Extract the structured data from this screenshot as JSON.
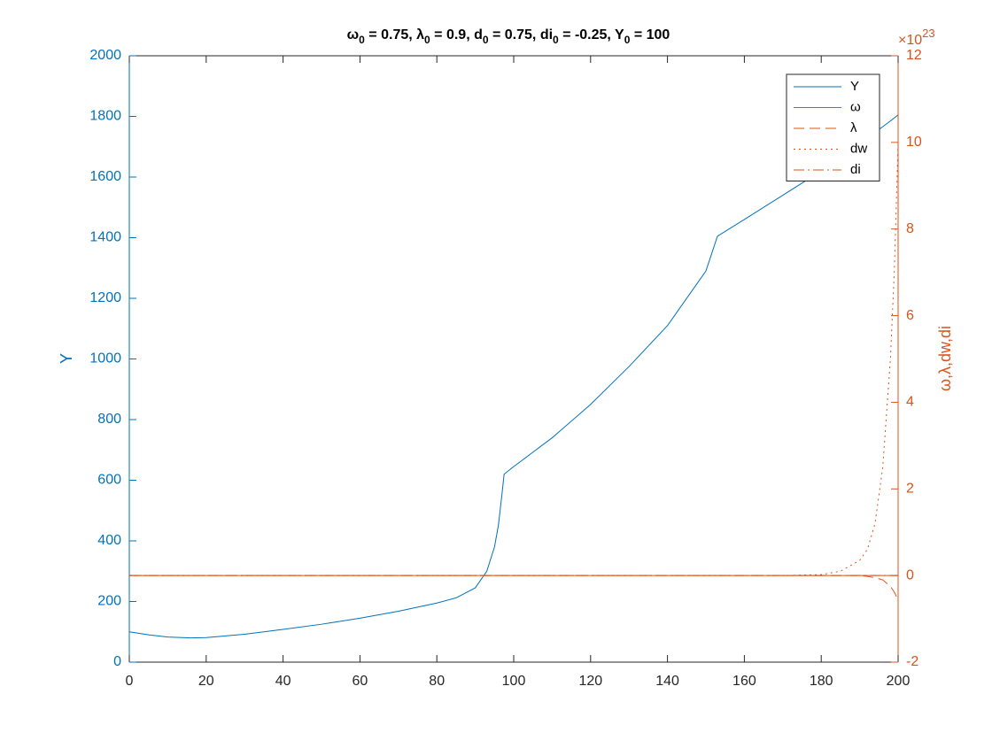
{
  "chart_data": {
    "type": "line",
    "title": [
      "ω",
      "0",
      " = 0.75, λ",
      "0",
      " = 0.9, d",
      "0",
      " = 0.75, di",
      "0",
      " = -0.25, Y",
      "0",
      " = 100"
    ],
    "ylabel": "Y",
    "y2label": "ω,λ,dw,di",
    "y2_scale_label": "×10",
    "y2_scale_exponent": "23",
    "x": [
      0,
      5,
      10,
      16,
      20,
      30,
      40,
      50,
      60,
      70,
      80,
      85,
      90,
      93,
      95,
      96,
      97,
      97.5,
      100,
      110,
      120,
      130,
      140,
      150,
      153,
      160,
      170,
      180,
      185,
      190,
      192,
      194,
      196,
      198,
      199,
      200
    ],
    "series": [
      {
        "name": "Y",
        "color": "#0072BD",
        "style": "solid",
        "axis": "y",
        "values": [
          100,
          90,
          83,
          80,
          81,
          92,
          108,
          125,
          145,
          168,
          195,
          212,
          245,
          300,
          380,
          450,
          560,
          620,
          645,
          740,
          850,
          975,
          1110,
          1290,
          1405,
          1460,
          1540,
          1620,
          1665,
          1710,
          1728,
          1747,
          1766,
          1785,
          1795,
          1805
        ]
      },
      {
        "name": "ω",
        "color": "#D95319",
        "style": "solid",
        "axis": "y2",
        "values": [
          0,
          0,
          0,
          0,
          0,
          0,
          0,
          0,
          0,
          0,
          0,
          0,
          0,
          0,
          0,
          0,
          0,
          0,
          0,
          0,
          0,
          0,
          0,
          0,
          0,
          0,
          0,
          0,
          0,
          0,
          0,
          0,
          0,
          0,
          0,
          0
        ]
      },
      {
        "name": "λ",
        "color": "#D95319",
        "style": "dashed",
        "axis": "y2",
        "values": [
          0,
          0,
          0,
          0,
          0,
          0,
          0,
          0,
          0,
          0,
          0,
          0,
          0,
          0,
          0,
          0,
          0,
          0,
          0,
          0,
          0,
          0,
          0,
          0,
          0,
          0,
          0,
          0,
          0,
          0,
          -0.02,
          -0.05,
          -0.1,
          -0.25,
          -0.38,
          -0.57
        ]
      },
      {
        "name": "dw",
        "color": "#D95319",
        "style": "dotted",
        "axis": "y2",
        "values": [
          0,
          0,
          0,
          0,
          0,
          0,
          0,
          0,
          0,
          0,
          0,
          0,
          0,
          0,
          0,
          0,
          0,
          0,
          0,
          0,
          0,
          0,
          0,
          0,
          0,
          0,
          0,
          0.02,
          0.1,
          0.35,
          0.6,
          1.2,
          2.5,
          5,
          7,
          10
        ]
      },
      {
        "name": "di",
        "color": "#D95319",
        "style": "dashdot",
        "axis": "y2",
        "values": [
          0,
          0,
          0,
          0,
          0,
          0,
          0,
          0,
          0,
          0,
          0,
          0,
          0,
          0,
          0,
          0,
          0,
          0,
          0,
          0,
          0,
          0,
          0,
          0,
          0,
          0,
          0,
          0,
          0,
          0,
          0,
          0,
          0,
          0,
          0,
          0
        ]
      }
    ],
    "xlim": [
      0,
      200
    ],
    "xticks": [
      0,
      20,
      40,
      60,
      80,
      100,
      120,
      140,
      160,
      180,
      200
    ],
    "ylim": [
      0,
      2000
    ],
    "yticks": [
      0,
      200,
      400,
      600,
      800,
      1000,
      1200,
      1400,
      1600,
      1800,
      2000
    ],
    "y2lim": [
      -2,
      12
    ],
    "y2ticks": [
      -2,
      0,
      2,
      4,
      6,
      8,
      10,
      12
    ],
    "legend": "top-right"
  }
}
